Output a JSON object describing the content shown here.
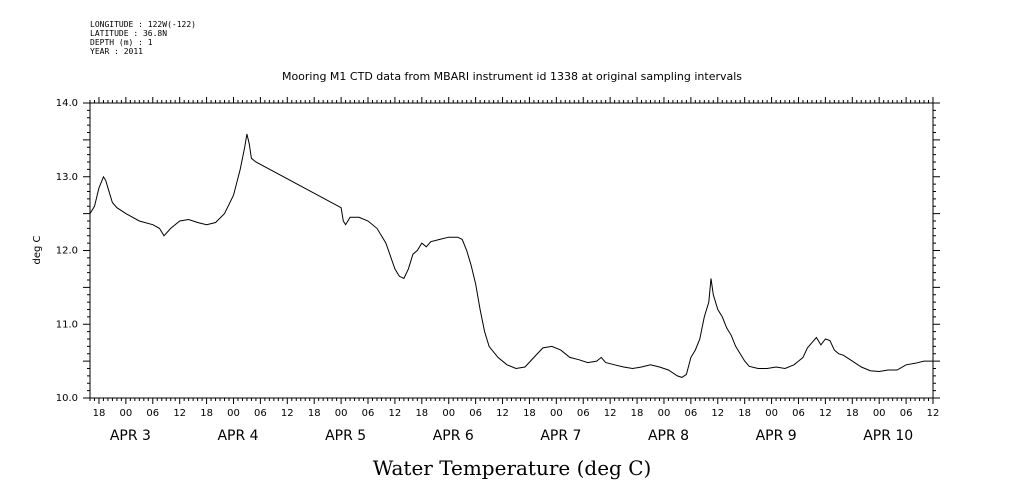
{
  "header": {
    "lines": [
      "LONGITUDE : 122W(-122)",
      "LATITUDE : 36.8N",
      "DEPTH (m) : 1",
      "YEAR : 2011"
    ]
  },
  "chart_data": {
    "type": "line",
    "title": "Mooring M1 CTD data from MBARI instrument id 1338 at original sampling intervals",
    "xlabel": "Water Temperature (deg C)",
    "ylabel": "deg C",
    "ylim": [
      10.0,
      14.0
    ],
    "yticks": [
      "10.0",
      "11.0",
      "12.0",
      "13.0",
      "14.0"
    ],
    "x_hour_ticks": [
      "18",
      "00",
      "06",
      "12",
      "18",
      "00",
      "06",
      "12",
      "18",
      "00",
      "06",
      "12",
      "18",
      "00",
      "06",
      "12",
      "18",
      "00",
      "06",
      "12",
      "18",
      "00",
      "06",
      "12",
      "18",
      "00",
      "06",
      "12",
      "18",
      "00",
      "06",
      "12"
    ],
    "x_day_labels": [
      "APR 3",
      "APR 4",
      "APR 5",
      "APR 6",
      "APR 7",
      "APR 8",
      "APR 9",
      "APR 10"
    ],
    "x_unit": "hours since APR 3 00:00",
    "xlim": [
      16,
      180
    ],
    "grid": false,
    "series": [
      {
        "name": "",
        "points": [
          [
            16,
            12.5
          ],
          [
            17,
            12.6
          ],
          [
            18,
            12.85
          ],
          [
            19,
            13.0
          ],
          [
            19.5,
            12.95
          ],
          [
            20,
            12.85
          ],
          [
            21,
            12.65
          ],
          [
            22,
            12.58
          ],
          [
            24,
            12.5
          ],
          [
            27,
            12.4
          ],
          [
            30,
            12.35
          ],
          [
            31.5,
            12.3
          ],
          [
            32.5,
            12.2
          ],
          [
            34,
            12.3
          ],
          [
            36,
            12.4
          ],
          [
            38,
            12.42
          ],
          [
            40,
            12.38
          ],
          [
            42,
            12.35
          ],
          [
            44,
            12.38
          ],
          [
            46,
            12.5
          ],
          [
            48,
            12.75
          ],
          [
            49.5,
            13.1
          ],
          [
            50.5,
            13.4
          ],
          [
            51,
            13.58
          ],
          [
            51.5,
            13.45
          ],
          [
            52,
            13.25
          ],
          [
            53,
            13.2
          ],
          [
            72,
            12.58
          ],
          [
            72.5,
            12.4
          ],
          [
            73,
            12.35
          ],
          [
            74,
            12.45
          ],
          [
            76,
            12.45
          ],
          [
            78,
            12.4
          ],
          [
            80,
            12.3
          ],
          [
            82,
            12.1
          ],
          [
            84,
            11.75
          ],
          [
            85,
            11.65
          ],
          [
            86,
            11.62
          ],
          [
            87,
            11.75
          ],
          [
            88,
            11.95
          ],
          [
            89,
            12.0
          ],
          [
            90,
            12.1
          ],
          [
            91,
            12.05
          ],
          [
            92,
            12.12
          ],
          [
            94,
            12.15
          ],
          [
            96,
            12.18
          ],
          [
            98,
            12.18
          ],
          [
            99,
            12.15
          ],
          [
            100,
            12.0
          ],
          [
            101,
            11.8
          ],
          [
            102,
            11.55
          ],
          [
            103,
            11.2
          ],
          [
            104,
            10.9
          ],
          [
            105,
            10.7
          ],
          [
            107,
            10.55
          ],
          [
            109,
            10.45
          ],
          [
            111,
            10.4
          ],
          [
            113,
            10.42
          ],
          [
            115,
            10.55
          ],
          [
            117,
            10.68
          ],
          [
            119,
            10.7
          ],
          [
            121,
            10.65
          ],
          [
            123,
            10.55
          ],
          [
            125,
            10.52
          ],
          [
            127,
            10.48
          ],
          [
            129,
            10.5
          ],
          [
            130,
            10.55
          ],
          [
            131,
            10.48
          ],
          [
            133,
            10.45
          ],
          [
            135,
            10.42
          ],
          [
            137,
            10.4
          ],
          [
            139,
            10.42
          ],
          [
            141,
            10.45
          ],
          [
            143,
            10.42
          ],
          [
            145,
            10.38
          ],
          [
            147,
            10.3
          ],
          [
            148,
            10.28
          ],
          [
            149,
            10.32
          ],
          [
            150,
            10.55
          ],
          [
            151,
            10.65
          ],
          [
            152,
            10.8
          ],
          [
            153,
            11.1
          ],
          [
            154,
            11.3
          ],
          [
            154.5,
            11.62
          ],
          [
            155,
            11.4
          ],
          [
            156,
            11.2
          ],
          [
            157,
            11.1
          ],
          [
            158,
            10.95
          ],
          [
            159,
            10.85
          ],
          [
            160,
            10.7
          ],
          [
            161,
            10.6
          ],
          [
            162,
            10.5
          ],
          [
            163,
            10.43
          ],
          [
            165,
            10.4
          ],
          [
            167,
            10.4
          ],
          [
            169,
            10.42
          ],
          [
            171,
            10.4
          ],
          [
            173,
            10.45
          ],
          [
            174,
            10.5
          ],
          [
            175,
            10.55
          ],
          [
            176,
            10.68
          ],
          [
            177,
            10.75
          ],
          [
            178,
            10.82
          ],
          [
            179,
            10.72
          ],
          [
            180,
            10.8
          ]
        ],
        "points_part2": [
          [
            180,
            10.8
          ],
          [
            181,
            10.78
          ],
          [
            182,
            10.65
          ],
          [
            183,
            10.6
          ],
          [
            184,
            10.58
          ],
          [
            186,
            10.5
          ],
          [
            188,
            10.42
          ],
          [
            190,
            10.37
          ],
          [
            192,
            10.36
          ],
          [
            194,
            10.38
          ],
          [
            196,
            10.38
          ],
          [
            198,
            10.45
          ],
          [
            200,
            10.47
          ],
          [
            202,
            10.5
          ],
          [
            204,
            10.5
          ]
        ]
      }
    ],
    "x_full_range": [
      16,
      204
    ]
  }
}
